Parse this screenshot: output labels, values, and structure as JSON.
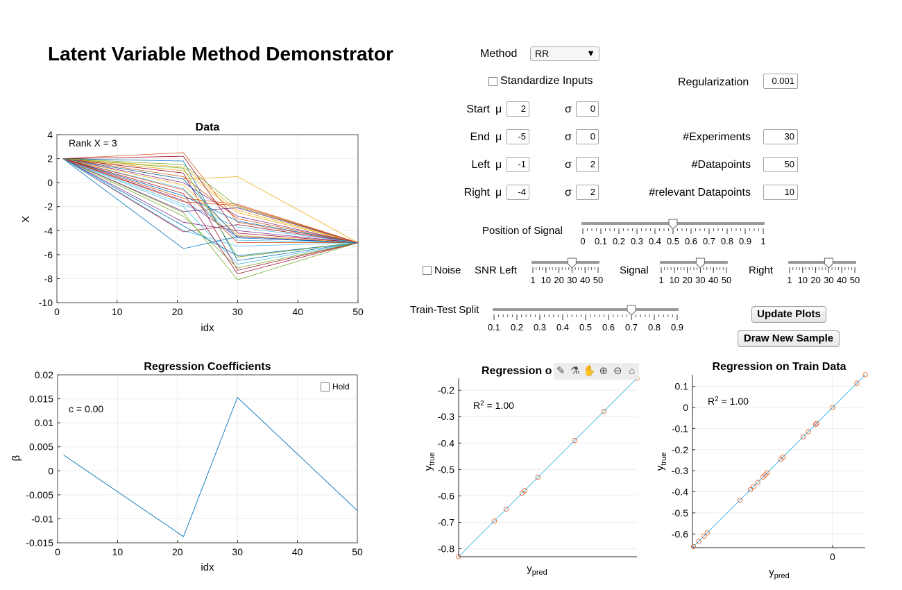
{
  "app_title": "Latent Variable Method Demonstrator",
  "method": {
    "label": "Method",
    "value": "RR",
    "arrow": "▼"
  },
  "standardize": {
    "label": "Standardize Inputs",
    "checked": false
  },
  "regularization": {
    "label": "Regularization",
    "value": "0.001"
  },
  "params": [
    {
      "label": "Start",
      "mu_label": "μ",
      "mu": "2",
      "sigma_label": "σ",
      "sigma": "0"
    },
    {
      "label": "End",
      "mu_label": "μ",
      "mu": "-5",
      "sigma_label": "σ",
      "sigma": "0"
    },
    {
      "label": "Left",
      "mu_label": "μ",
      "mu": "-1",
      "sigma_label": "σ",
      "sigma": "2"
    },
    {
      "label": "Right",
      "mu_label": "μ",
      "mu": "-4",
      "sigma_label": "σ",
      "sigma": "2"
    }
  ],
  "experiments": {
    "label": "#Experiments",
    "value": "30"
  },
  "datapoints": {
    "label": "#Datapoints",
    "value": "50"
  },
  "relevant": {
    "label": "#relevant Datapoints",
    "value": "10"
  },
  "position_signal": {
    "label": "Position of Signal",
    "value": 0.5,
    "min": 0,
    "max": 1,
    "ticks": [
      "0",
      "0.1",
      "0.2",
      "0.3",
      "0.4",
      "0.5",
      "0.6",
      "0.7",
      "0.8",
      "0.9",
      "1"
    ]
  },
  "noise": {
    "label": "Noise",
    "checked": false
  },
  "snr": {
    "left": {
      "label": "SNR Left",
      "value": 30
    },
    "signal": {
      "label": "Signal",
      "value": 30
    },
    "right": {
      "label": "Right",
      "value": 30
    },
    "min": 1,
    "max": 50,
    "ticks": [
      "1",
      "10",
      "20",
      "30",
      "40",
      "50"
    ]
  },
  "split": {
    "label": "Train-Test Split",
    "value": 0.7,
    "min": 0.1,
    "max": 0.9,
    "ticks": [
      "0.1",
      "0.2",
      "0.3",
      "0.4",
      "0.5",
      "0.6",
      "0.7",
      "0.8",
      "0.9"
    ]
  },
  "buttons": {
    "update": "Update Plots",
    "draw": "Draw New Sample"
  },
  "hold": {
    "label": "Hold",
    "checked": false
  },
  "toolbar_icons": [
    "brush-icon",
    "datatip-icon",
    "pan-icon",
    "zoom-in-icon",
    "zoom-out-icon",
    "home-icon"
  ],
  "colors": {
    "series": [
      "#0072bd",
      "#d95319",
      "#edb120",
      "#7e2f8e",
      "#77ac30",
      "#4dbeee",
      "#a2142f"
    ],
    "line": "#0072bd",
    "marker": "#d95319"
  },
  "chart_data": [
    {
      "type": "line",
      "title": "Data",
      "xlabel": "idx",
      "ylabel": "X",
      "annotation": "Rank X = 3",
      "xlim": [
        0,
        50
      ],
      "ylim": [
        -10,
        4
      ],
      "xticks": [
        0,
        10,
        20,
        30,
        40,
        50
      ],
      "yticks": [
        -10,
        -8,
        -6,
        -4,
        -2,
        0,
        2,
        4
      ],
      "x": [
        1,
        21,
        30,
        50
      ],
      "series": [
        {
          "values": [
            2,
            -5.5,
            -4.5,
            -5
          ]
        },
        {
          "values": [
            2,
            2.5,
            -3.3,
            -5
          ]
        },
        {
          "values": [
            2,
            0.3,
            0.5,
            -5
          ]
        },
        {
          "values": [
            2,
            -1.5,
            -4.5,
            -5
          ]
        },
        {
          "values": [
            2,
            -2.5,
            -8.1,
            -5
          ]
        },
        {
          "values": [
            2,
            -0.5,
            -4.8,
            -5
          ]
        },
        {
          "values": [
            2,
            -4.1,
            -3.5,
            -5
          ]
        },
        {
          "values": [
            2,
            1.8,
            -6.5,
            -5
          ]
        },
        {
          "values": [
            2,
            -1.3,
            -1.8,
            -5
          ]
        },
        {
          "values": [
            2,
            1.0,
            -2.5,
            -5
          ]
        },
        {
          "values": [
            2,
            -3.3,
            -4.0,
            -5
          ]
        },
        {
          "values": [
            2,
            1.5,
            -2.0,
            -5
          ]
        },
        {
          "values": [
            2,
            -2.0,
            -6.8,
            -5
          ]
        },
        {
          "values": [
            2,
            0.8,
            -7.3,
            -5
          ]
        },
        {
          "values": [
            2,
            -1.1,
            -3.2,
            -5
          ]
        },
        {
          "values": [
            2,
            -0.6,
            -5.0,
            -5
          ]
        },
        {
          "values": [
            2,
            1.3,
            -2.3,
            -5
          ]
        },
        {
          "values": [
            2,
            0.0,
            -2.8,
            -5
          ]
        },
        {
          "values": [
            2,
            -2.8,
            -7.1,
            -5
          ]
        },
        {
          "values": [
            2,
            -1.8,
            -3.7,
            -5
          ]
        },
        {
          "values": [
            2,
            2.2,
            -4.2,
            -5
          ]
        },
        {
          "values": [
            2,
            -3.6,
            -6.1,
            -5
          ]
        },
        {
          "values": [
            2,
            0.5,
            -3.0,
            -5
          ]
        },
        {
          "values": [
            2,
            -0.2,
            -4.4,
            -5
          ]
        },
        {
          "values": [
            2,
            -2.4,
            -2.1,
            -5
          ]
        },
        {
          "values": [
            2,
            1.2,
            -6.2,
            -5
          ]
        },
        {
          "values": [
            2,
            -4.0,
            -5.3,
            -5
          ]
        },
        {
          "values": [
            2,
            -0.9,
            -7.6,
            -5
          ]
        },
        {
          "values": [
            2,
            0.3,
            -4.6,
            -5
          ]
        },
        {
          "values": [
            2,
            -1.6,
            -1.9,
            -5
          ]
        }
      ]
    },
    {
      "type": "line",
      "title": "Regression Coefficients",
      "xlabel": "idx",
      "ylabel": "β",
      "annotation": "c = 0.00",
      "xlim": [
        0,
        50
      ],
      "ylim": [
        -0.015,
        0.02
      ],
      "xticks": [
        0,
        10,
        20,
        30,
        40,
        50
      ],
      "yticks": [
        "-0.015",
        "-0.01",
        "-0.005",
        "0",
        "0.005",
        "0.01",
        "0.015",
        "0.02"
      ],
      "x": [
        1,
        21,
        30,
        50
      ],
      "values": [
        0.0033,
        -0.0137,
        0.0153,
        -0.0083
      ]
    },
    {
      "type": "scatter",
      "title": "Regression o",
      "xlabel": "y",
      "xlabel_sub": "pred",
      "ylabel": "y",
      "ylabel_sub": "true",
      "annotation": "R",
      "annotation_sup": "2",
      "annotation_value": " =  1.00",
      "xlim": [
        -0.83,
        -0.155
      ],
      "ylim": [
        -0.83,
        -0.155
      ],
      "yticks": [
        "-0.8",
        "-0.7",
        "-0.6",
        "-0.5",
        "-0.4",
        "-0.3",
        "-0.2"
      ],
      "points": [
        {
          "x": -0.83,
          "y": -0.83
        },
        {
          "x": -0.695,
          "y": -0.695
        },
        {
          "x": -0.65,
          "y": -0.65
        },
        {
          "x": -0.59,
          "y": -0.59
        },
        {
          "x": -0.58,
          "y": -0.58
        },
        {
          "x": -0.53,
          "y": -0.53
        },
        {
          "x": -0.39,
          "y": -0.39
        },
        {
          "x": -0.28,
          "y": -0.28
        },
        {
          "x": -0.155,
          "y": -0.155
        }
      ]
    },
    {
      "type": "scatter",
      "title": "Regression on Train Data",
      "xlabel": "y",
      "xlabel_sub": "pred",
      "ylabel": "y",
      "ylabel_sub": "true",
      "annotation": "R",
      "annotation_sup": "2",
      "annotation_value": " =  1.00",
      "xlim": [
        -0.665,
        0.155
      ],
      "ylim": [
        -0.665,
        0.155
      ],
      "xticks": [
        "0"
      ],
      "yticks": [
        "-0.6",
        "-0.5",
        "-0.4",
        "-0.3",
        "-0.2",
        "-0.1",
        "0",
        "0.1"
      ],
      "points": [
        {
          "x": -0.66,
          "y": -0.66
        },
        {
          "x": -0.635,
          "y": -0.635
        },
        {
          "x": -0.61,
          "y": -0.61
        },
        {
          "x": -0.595,
          "y": -0.595
        },
        {
          "x": -0.44,
          "y": -0.44
        },
        {
          "x": -0.39,
          "y": -0.39
        },
        {
          "x": -0.375,
          "y": -0.375
        },
        {
          "x": -0.355,
          "y": -0.355
        },
        {
          "x": -0.33,
          "y": -0.33
        },
        {
          "x": -0.32,
          "y": -0.32
        },
        {
          "x": -0.31,
          "y": -0.31
        },
        {
          "x": -0.245,
          "y": -0.245
        },
        {
          "x": -0.235,
          "y": -0.235
        },
        {
          "x": -0.14,
          "y": -0.14
        },
        {
          "x": -0.115,
          "y": -0.115
        },
        {
          "x": -0.08,
          "y": -0.08
        },
        {
          "x": -0.075,
          "y": -0.075
        },
        {
          "x": 0.0,
          "y": 0.0
        },
        {
          "x": 0.115,
          "y": 0.115
        },
        {
          "x": 0.155,
          "y": 0.155
        }
      ]
    }
  ]
}
